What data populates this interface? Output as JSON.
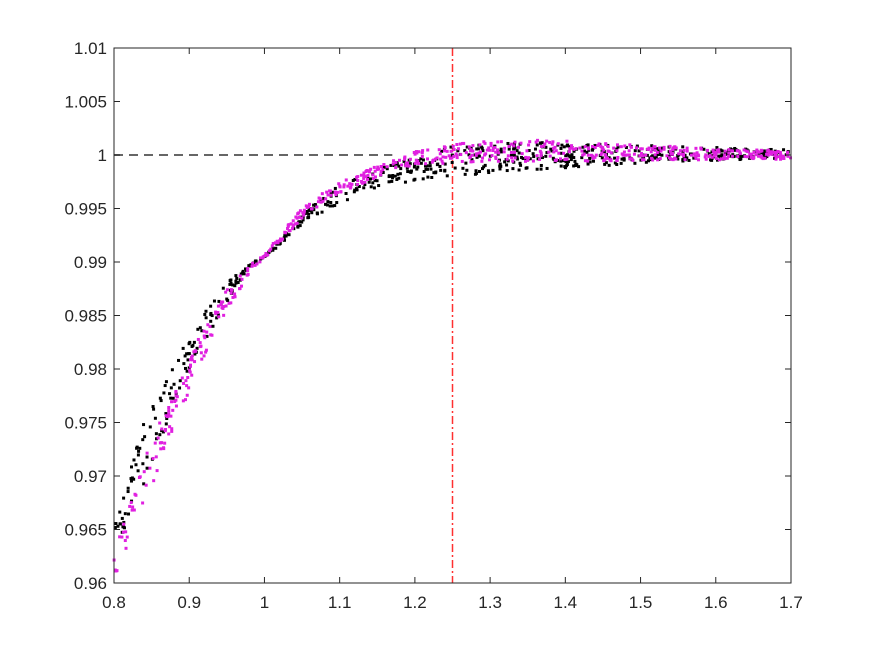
{
  "chart_data": {
    "type": "scatter",
    "title": "",
    "xlabel": "",
    "ylabel": "",
    "xlim": [
      0.8,
      1.7
    ],
    "ylim": [
      0.96,
      1.01
    ],
    "x_ticks": [
      0.8,
      0.9,
      1.0,
      1.1,
      1.2,
      1.3,
      1.4,
      1.5,
      1.6,
      1.7
    ],
    "y_ticks": [
      0.96,
      0.965,
      0.97,
      0.975,
      0.98,
      0.985,
      0.99,
      0.995,
      1.0,
      1.005,
      1.01
    ],
    "x_tick_labels": [
      "0.8",
      "0.9",
      "1",
      "1.1",
      "1.2",
      "1.3",
      "1.4",
      "1.5",
      "1.6",
      "1.7"
    ],
    "y_tick_labels": [
      "0.96",
      "0.965",
      "0.97",
      "0.975",
      "0.98",
      "0.985",
      "0.99",
      "0.995",
      "1",
      "1.005",
      "1.01"
    ],
    "grid": false,
    "legend": "none",
    "series": [
      {
        "color": "#000000",
        "marker": "dot",
        "x": [
          0.8,
          0.82,
          0.84,
          0.86,
          0.88,
          0.9,
          0.92,
          0.94,
          0.96,
          0.98,
          1.0,
          1.02,
          1.05,
          1.08,
          1.1,
          1.13,
          1.16,
          1.2,
          1.25,
          1.3,
          1.35,
          1.4,
          1.45,
          1.5,
          1.55,
          1.6,
          1.65,
          1.7
        ],
        "y_low": [
          0.9625,
          0.966,
          0.969,
          0.973,
          0.9765,
          0.98,
          0.9825,
          0.985,
          0.9875,
          0.9895,
          0.9905,
          0.9915,
          0.9935,
          0.9948,
          0.9955,
          0.9964,
          0.997,
          0.9976,
          0.998,
          0.9983,
          0.9986,
          0.9988,
          0.999,
          0.9992,
          0.9994,
          0.9995,
          0.9996,
          0.9997
        ],
        "y_high": [
          0.9675,
          0.971,
          0.975,
          0.978,
          0.9805,
          0.983,
          0.9855,
          0.9875,
          0.9888,
          0.9898,
          0.9905,
          0.992,
          0.9945,
          0.9962,
          0.9972,
          0.998,
          0.999,
          1.0,
          1.0008,
          1.0011,
          1.0012,
          1.0011,
          1.001,
          1.0009,
          1.0008,
          1.0007,
          1.0006,
          1.0005
        ]
      },
      {
        "color": "#e020e0",
        "marker": "dot",
        "x": [
          0.8,
          0.82,
          0.84,
          0.86,
          0.88,
          0.9,
          0.92,
          0.94,
          0.96,
          0.98,
          1.0,
          1.02,
          1.05,
          1.08,
          1.1,
          1.13,
          1.16,
          1.2,
          1.25,
          1.3,
          1.35,
          1.4,
          1.45,
          1.5,
          1.55,
          1.6,
          1.65,
          1.7
        ],
        "y_low": [
          0.9605,
          0.9635,
          0.967,
          0.971,
          0.9745,
          0.978,
          0.981,
          0.984,
          0.9865,
          0.9888,
          0.9903,
          0.9918,
          0.994,
          0.9956,
          0.9965,
          0.9973,
          0.9982,
          0.999,
          0.9993,
          0.9994,
          0.9994,
          0.9994,
          0.9994,
          0.9995,
          0.9995,
          0.9995,
          0.9996,
          0.9996
        ],
        "y_high": [
          0.964,
          0.9675,
          0.9715,
          0.975,
          0.978,
          0.981,
          0.984,
          0.9865,
          0.9882,
          0.9897,
          0.9907,
          0.9925,
          0.995,
          0.9966,
          0.9975,
          0.9984,
          0.9993,
          1.0003,
          1.001,
          1.0013,
          1.0015,
          1.0013,
          1.0011,
          1.0009,
          1.0008,
          1.0006,
          1.0005,
          1.0004
        ]
      }
    ],
    "reference_lines": [
      {
        "orientation": "horizontal",
        "value": 1.0,
        "x_end": 1.17,
        "style": "dashed",
        "color": "#666666"
      },
      {
        "orientation": "vertical",
        "value": 1.25,
        "style": "dash-dot",
        "color": "#ff3030"
      }
    ],
    "points_per_series": 650
  }
}
